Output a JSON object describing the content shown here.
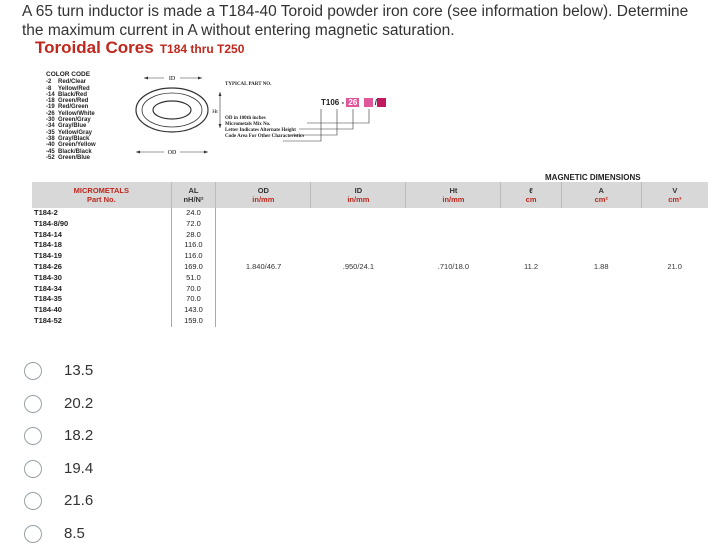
{
  "question": "A 65 turn inductor is made a T184-40 Toroid powder iron core (see information below). Determine the maximum current in A without entering magnetic saturation.",
  "title": "Toroidal Cores",
  "title_sub": "T184 thru T250",
  "color_code": {
    "header": "COLOR CODE",
    "rows": [
      {
        "code": "-2",
        "color": "Red/Clear"
      },
      {
        "code": "-8",
        "color": "Yellow/Red"
      },
      {
        "code": "-14",
        "color": "Black/Red"
      },
      {
        "code": "-18",
        "color": "Green/Red"
      },
      {
        "code": "-19",
        "color": "Red/Green"
      },
      {
        "code": "-26",
        "color": "Yellow/White"
      },
      {
        "code": "-30",
        "color": "Green/Gray"
      },
      {
        "code": "-34",
        "color": "Gray/Blue"
      },
      {
        "code": "-35",
        "color": "Yellow/Gray"
      },
      {
        "code": "-38",
        "color": "Gray/Black"
      },
      {
        "code": "-40",
        "color": "Green/Yellow"
      },
      {
        "code": "-45",
        "color": "Black/Black"
      },
      {
        "code": "-52",
        "color": "Green/Blue"
      }
    ]
  },
  "toroid_labels": {
    "id": "ID",
    "ht": "Ht",
    "od": "OD"
  },
  "part_number": {
    "typical_label": "TYPICAL PART NO.",
    "prefix": "T",
    "size": "106",
    "dash": "-",
    "mix": "26",
    "slash": "/",
    "notes": [
      "OD in 100th inches",
      "Micrometals Mix No.",
      "Letter Indicates Alternate Height",
      "Code Area For Other Characteristics"
    ]
  },
  "table": {
    "magnetic_dimensions": "MAGNETIC DIMENSIONS",
    "headers": {
      "part": [
        "MICROMETALS",
        "Part No."
      ],
      "al": [
        "AL",
        "nH/N²"
      ],
      "od": [
        "OD",
        "in/mm"
      ],
      "id": [
        "ID",
        "in/mm"
      ],
      "ht": [
        "Ht",
        "in/mm"
      ],
      "l": [
        "ℓ",
        "cm"
      ],
      "a": [
        "A",
        "cm²"
      ],
      "v": [
        "V",
        "cm³"
      ]
    },
    "rows": [
      {
        "part": "T184-2",
        "al": "24.0"
      },
      {
        "part": "T184-8/90",
        "al": "72.0"
      },
      {
        "part": "T184-14",
        "al": "28.0"
      },
      {
        "part": "T184-18",
        "al": "116.0"
      },
      {
        "part": "T184-19",
        "al": "116.0"
      },
      {
        "part": "T184-26",
        "al": "169.0"
      },
      {
        "part": "T184-30",
        "al": "51.0"
      },
      {
        "part": "T184-34",
        "al": "70.0"
      },
      {
        "part": "T184-35",
        "al": "70.0"
      },
      {
        "part": "T184-40",
        "al": "143.0"
      },
      {
        "part": "T184-52",
        "al": "159.0"
      }
    ],
    "shared": {
      "od": "1.840/46.7",
      "id": ".950/24.1",
      "ht": ".710/18.0",
      "l": "11.2",
      "a": "1.88",
      "v": "21.0"
    }
  },
  "options": [
    "13.5",
    "20.2",
    "18.2",
    "19.4",
    "21.6",
    "8.5"
  ]
}
